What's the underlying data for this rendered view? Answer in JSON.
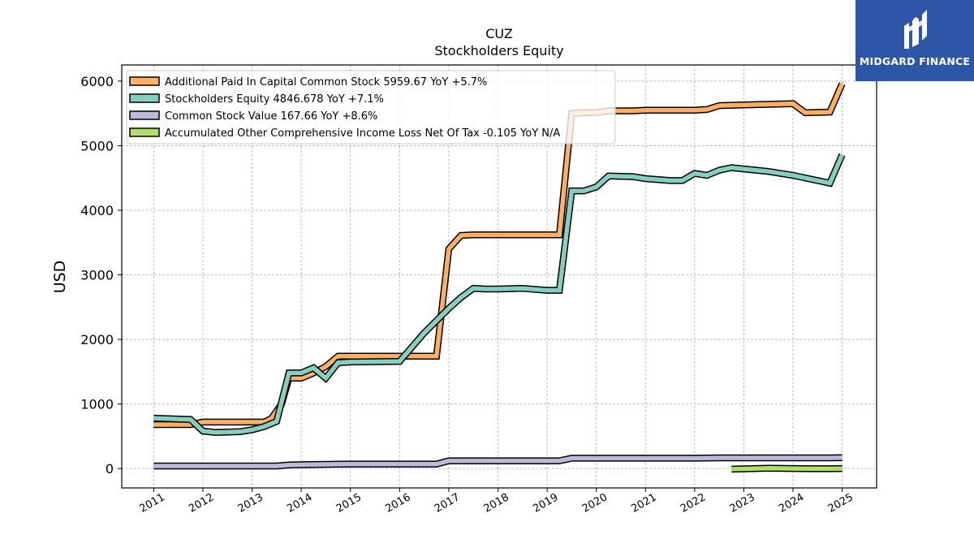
{
  "chart_data": {
    "type": "line",
    "title": "CUZ",
    "subtitle": "Stockholders  Equity",
    "ylabel": "USD",
    "xlabel": "",
    "xlim": [
      2010.35,
      2025.7
    ],
    "ylim": [
      -300,
      6250
    ],
    "x_ticks": [
      2011,
      2012,
      2013,
      2014,
      2015,
      2016,
      2017,
      2018,
      2019,
      2020,
      2021,
      2022,
      2023,
      2024,
      2025
    ],
    "y_ticks": [
      0,
      1000,
      2000,
      3000,
      4000,
      5000,
      6000
    ],
    "grid": true,
    "legend_position": "top-left",
    "series": [
      {
        "name": "Additional Paid In Capital Common Stock  5959.67 YoY +5.7%",
        "color": "#fdb063",
        "x": [
          2011.0,
          2011.75,
          2012.0,
          2012.25,
          2012.5,
          2012.75,
          2013.0,
          2013.25,
          2013.4,
          2013.6,
          2013.75,
          2014.0,
          2014.25,
          2014.5,
          2014.75,
          2015.0,
          2015.5,
          2016.0,
          2016.75,
          2017.0,
          2017.25,
          2017.5,
          2018.0,
          2018.5,
          2019.0,
          2019.25,
          2019.5,
          2019.75,
          2020.0,
          2020.25,
          2020.5,
          2020.75,
          2021.0,
          2021.5,
          2022.0,
          2022.25,
          2022.5,
          2023.0,
          2023.5,
          2024.0,
          2024.25,
          2024.75,
          2025.0
        ],
        "y": [
          680,
          680,
          720,
          720,
          720,
          720,
          720,
          720,
          780,
          1000,
          1400,
          1400,
          1480,
          1580,
          1740,
          1740,
          1740,
          1740,
          1740,
          3400,
          3610,
          3620,
          3620,
          3620,
          3620,
          3620,
          5500,
          5510,
          5510,
          5540,
          5540,
          5540,
          5550,
          5550,
          5550,
          5560,
          5620,
          5630,
          5640,
          5650,
          5510,
          5520,
          5960
        ]
      },
      {
        "name": "Stockholders Equity  4846.678 YoY +7.1%",
        "color": "#86cfbf",
        "x": [
          2011.0,
          2011.75,
          2012.0,
          2012.25,
          2012.75,
          2013.0,
          2013.25,
          2013.5,
          2013.75,
          2014.0,
          2014.25,
          2014.5,
          2014.75,
          2015.0,
          2016.0,
          2016.5,
          2017.0,
          2017.25,
          2017.5,
          2017.75,
          2018.0,
          2018.5,
          2019.0,
          2019.25,
          2019.5,
          2019.75,
          2020.0,
          2020.25,
          2020.75,
          2021.0,
          2021.5,
          2021.75,
          2022.0,
          2022.25,
          2022.5,
          2022.75,
          2023.0,
          2023.5,
          2024.0,
          2024.5,
          2024.75,
          2025.0
        ],
        "y": [
          780,
          760,
          580,
          560,
          570,
          600,
          650,
          730,
          1480,
          1480,
          1560,
          1400,
          1640,
          1650,
          1660,
          2100,
          2480,
          2650,
          2790,
          2780,
          2780,
          2790,
          2760,
          2760,
          4300,
          4300,
          4360,
          4530,
          4520,
          4490,
          4460,
          4460,
          4570,
          4540,
          4620,
          4660,
          4640,
          4600,
          4540,
          4460,
          4420,
          4860
        ]
      },
      {
        "name": "Common Stock Value  167.66 YoY +8.6%",
        "color": "#bcbad9",
        "x": [
          2011.0,
          2013.5,
          2013.75,
          2014.0,
          2015.0,
          2016.0,
          2016.75,
          2017.0,
          2019.25,
          2019.5,
          2020.0,
          2022.0,
          2022.5,
          2024.75,
          2025.0
        ],
        "y": [
          40,
          40,
          55,
          60,
          70,
          70,
          70,
          120,
          120,
          160,
          160,
          160,
          165,
          165,
          168
        ]
      },
      {
        "name": "Accumulated Other Comprehensive Income Loss Net Of Tax  -0.105 YoY N/A",
        "color": "#b3de69",
        "x": [
          2022.75,
          2023.0,
          2023.5,
          2024.0,
          2024.5,
          2025.0
        ],
        "y": [
          -10,
          -5,
          5,
          0,
          -3,
          -0.105
        ]
      }
    ]
  },
  "watermark": {
    "brand": "MIDGARD FINANCE",
    "color": "#2d55a8"
  }
}
